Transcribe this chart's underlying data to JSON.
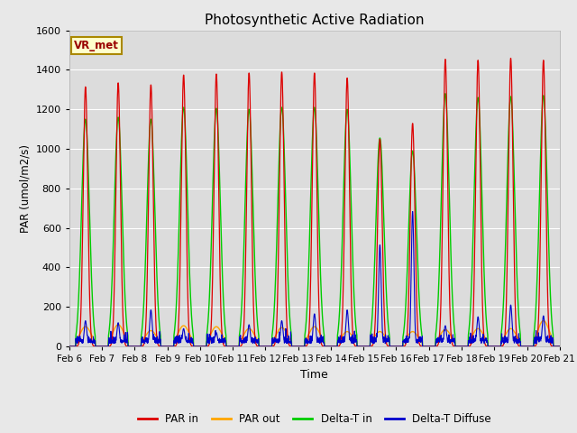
{
  "title": "Photosynthetic Active Radiation",
  "ylabel": "PAR (umol/m2/s)",
  "xlabel": "Time",
  "ylim": [
    0,
    1600
  ],
  "yticks": [
    0,
    200,
    400,
    600,
    800,
    1000,
    1200,
    1400,
    1600
  ],
  "fig_bg": "#e8e8e8",
  "plot_bg": "#dcdcdc",
  "label_box_text": "VR_met",
  "legend_labels": [
    "PAR in",
    "PAR out",
    "Delta-T in",
    "Delta-T Diffuse"
  ],
  "legend_colors": [
    "#dd0000",
    "#ffa500",
    "#00cc00",
    "#0000cc"
  ],
  "line_colors": {
    "par_in": "#dd0000",
    "par_out": "#ffa500",
    "delta_t_in": "#00cc00",
    "delta_t_diffuse": "#0000cc"
  },
  "num_days": 15,
  "x_tick_labels": [
    "Feb 6",
    "Feb 7",
    "Feb 8",
    "Feb 9",
    "Feb 10",
    "Feb 11",
    "Feb 12",
    "Feb 13",
    "Feb 14",
    "Feb 15",
    "Feb 16",
    "Feb 17",
    "Feb 18",
    "Feb 19",
    "Feb 20",
    "Feb 21"
  ],
  "par_in_peaks": [
    1315,
    1335,
    1325,
    1375,
    1380,
    1385,
    1390,
    1385,
    1360,
    1050,
    1130,
    1455,
    1450,
    1460,
    1450
  ],
  "par_out_peaks": [
    100,
    110,
    80,
    105,
    100,
    90,
    95,
    100,
    75,
    75,
    75,
    85,
    90,
    90,
    130
  ],
  "delta_t_in_peaks": [
    1150,
    1160,
    1150,
    1210,
    1205,
    1200,
    1210,
    1210,
    1200,
    1055,
    990,
    1280,
    1260,
    1265,
    1270
  ],
  "delta_t_diffuse_peaks": [
    130,
    120,
    185,
    90,
    70,
    110,
    130,
    165,
    185,
    515,
    685,
    105,
    150,
    210,
    155
  ]
}
